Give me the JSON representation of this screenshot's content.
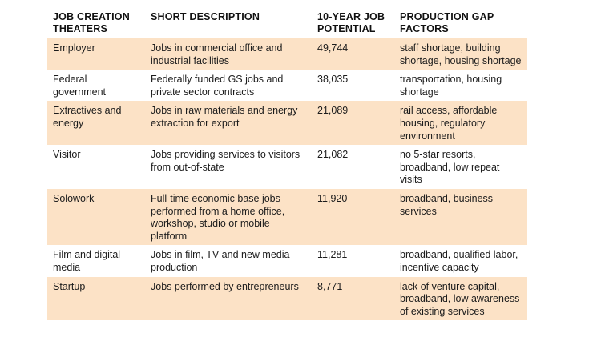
{
  "table": {
    "headers": [
      "JOB CREATION THEATERS",
      "SHORT DESCRIPTION",
      "10-YEAR JOB POTENTIAL",
      "PRODUCTION GAP FACTORS"
    ],
    "rows": [
      [
        "Employer",
        "Jobs in commercial office and industrial facilities",
        "49,744",
        "staff shortage, building shortage, housing shortage"
      ],
      [
        "Federal government",
        "Federally funded GS jobs and private sector contracts",
        "38,035",
        "transportation, housing shortage"
      ],
      [
        "Extractives and energy",
        "Jobs in raw materials and energy extraction for export",
        "21,089",
        "rail access, affordable housing, regulatory environment"
      ],
      [
        "Visitor",
        "Jobs providing services to visitors from out-of-state",
        "21,082",
        "no 5-star resorts, broadband, low repeat visits"
      ],
      [
        "Solowork",
        "Full-time economic base jobs performed from a home office, workshop, studio or mobile platform",
        "11,920",
        "broadband, business services"
      ],
      [
        "Film and digital media",
        "Jobs in film, TV and new media production",
        "11,281",
        "broadband, qualified labor, incentive capacity"
      ],
      [
        "Startup",
        "Jobs performed by entrepreneurs",
        "8,771",
        "lack of venture capital, broadband, low awareness of existing services"
      ]
    ]
  },
  "colors": {
    "shaded_row": "#fce2c6",
    "text": "#1c1c1c"
  }
}
